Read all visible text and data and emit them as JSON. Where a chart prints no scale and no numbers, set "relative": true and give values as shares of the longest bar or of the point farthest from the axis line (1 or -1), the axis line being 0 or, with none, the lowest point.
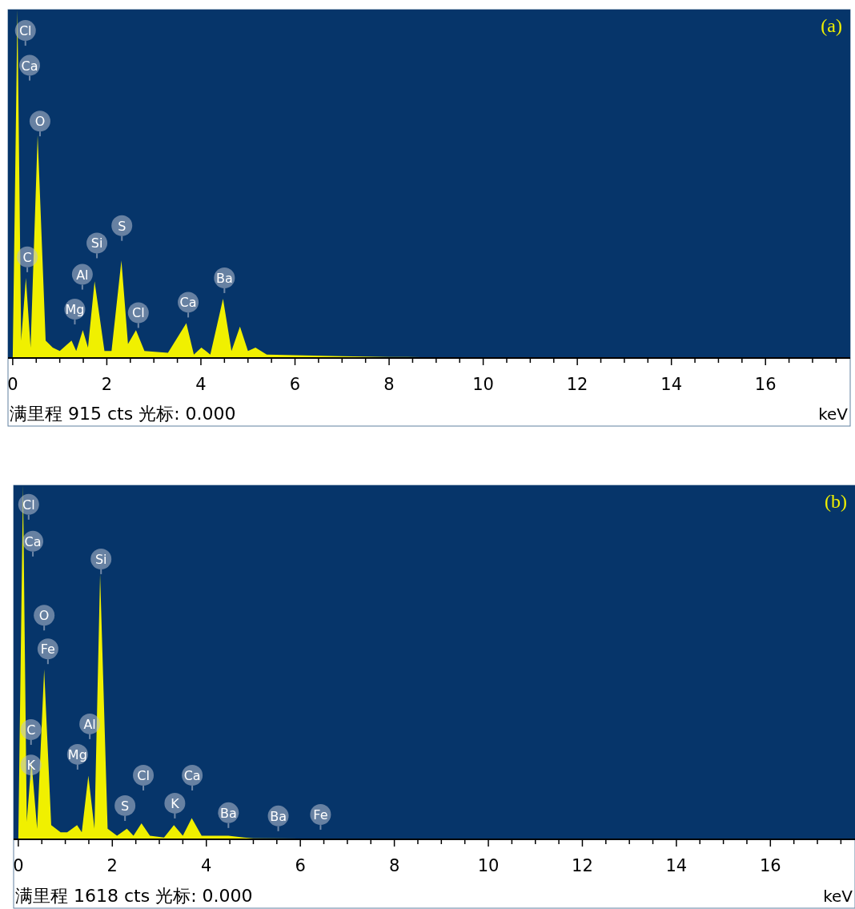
{
  "chart_data": [
    {
      "type": "area",
      "relative": true,
      "title": "(a)",
      "xlabel": "keV",
      "color": "#f0f000",
      "x": [
        0,
        0.1,
        0.18,
        0.28,
        0.38,
        0.53,
        0.7,
        0.85,
        1.0,
        1.25,
        1.35,
        1.49,
        1.6,
        1.74,
        1.95,
        2.1,
        2.31,
        2.45,
        2.62,
        2.8,
        3.3,
        3.69,
        3.85,
        4.01,
        4.2,
        4.47,
        4.65,
        4.83,
        5.0,
        5.16,
        5.4,
        6.0,
        7.0,
        8.0,
        9.0,
        10.0,
        17.7
      ],
      "values": [
        0,
        1,
        0.05,
        0.23,
        0.03,
        0.64,
        0.05,
        0.03,
        0.02,
        0.05,
        0.02,
        0.08,
        0.03,
        0.22,
        0.02,
        0.02,
        0.28,
        0.04,
        0.08,
        0.02,
        0.015,
        0.1,
        0.01,
        0.03,
        0.01,
        0.17,
        0.02,
        0.09,
        0.02,
        0.03,
        0.01,
        0.008,
        0.005,
        0.003,
        0.002,
        0,
        0
      ],
      "xlim": [
        -0.1,
        17.8
      ],
      "xticks": [
        0,
        {
          "value": 0.5,
          "label": null
        },
        {
          "value": 1,
          "label": null
        },
        {
          "value": 1.5,
          "label": null
        },
        2,
        {
          "value": 2.5,
          "label": null
        },
        {
          "value": 3,
          "label": null
        },
        {
          "value": 3.5,
          "label": null
        },
        4,
        {
          "value": 4.5,
          "label": null
        },
        {
          "value": 5,
          "label": null
        },
        {
          "value": 5.5,
          "label": null
        },
        6,
        {
          "value": 6.5,
          "label": null
        },
        {
          "value": 7,
          "label": null
        },
        {
          "value": 7.5,
          "label": null
        },
        8,
        {
          "value": 8.5,
          "label": null
        },
        {
          "value": 9,
          "label": null
        },
        {
          "value": 9.5,
          "label": null
        },
        10,
        {
          "value": 10.5,
          "label": null
        },
        {
          "value": 11,
          "label": null
        },
        {
          "value": 11.5,
          "label": null
        },
        12,
        {
          "value": 12.5,
          "label": null
        },
        {
          "value": 13,
          "label": null
        },
        {
          "value": 13.5,
          "label": null
        },
        14,
        {
          "value": 14.5,
          "label": null
        },
        {
          "value": 15,
          "label": null
        },
        {
          "value": 15.5,
          "label": null
        },
        16,
        {
          "value": 16.5,
          "label": null
        },
        {
          "value": 17,
          "label": null
        },
        {
          "value": 17.5,
          "label": null
        }
      ],
      "annotations": [
        {
          "text": "Cl",
          "x": 0.27,
          "y": 0.94
        },
        {
          "text": "Ca",
          "x": 0.36,
          "y": 0.84
        },
        {
          "text": "O",
          "x": 0.58,
          "y": 0.68
        },
        {
          "text": "C",
          "x": 0.31,
          "y": 0.29
        },
        {
          "text": "Si",
          "x": 1.79,
          "y": 0.33
        },
        {
          "text": "S",
          "x": 2.32,
          "y": 0.38
        },
        {
          "text": "Al",
          "x": 1.48,
          "y": 0.24
        },
        {
          "text": "Mg",
          "x": 1.32,
          "y": 0.14
        },
        {
          "text": "Cl",
          "x": 2.67,
          "y": 0.13
        },
        {
          "text": "Ca",
          "x": 3.73,
          "y": 0.16
        },
        {
          "text": "Ba",
          "x": 4.5,
          "y": 0.23
        },
        "满里程 915 cts 光标: 0.000"
      ]
    },
    {
      "type": "area",
      "relative": true,
      "title": "(b)",
      "xlabel": "keV",
      "color": "#f0f000",
      "x": [
        0,
        0.1,
        0.18,
        0.28,
        0.4,
        0.55,
        0.7,
        0.9,
        1.04,
        1.25,
        1.35,
        1.49,
        1.62,
        1.74,
        1.9,
        2.1,
        2.31,
        2.45,
        2.62,
        2.8,
        3.1,
        3.31,
        3.5,
        3.69,
        3.9,
        4.47,
        4.8,
        5.0,
        6.0,
        8.0,
        17.7
      ],
      "values": [
        0,
        1,
        0.05,
        0.22,
        0.03,
        0.48,
        0.04,
        0.02,
        0.02,
        0.04,
        0.02,
        0.18,
        0.03,
        0.75,
        0.03,
        0.01,
        0.03,
        0.01,
        0.045,
        0.01,
        0.005,
        0.04,
        0.01,
        0.06,
        0.01,
        0.01,
        0.005,
        0.003,
        0.002,
        0,
        0
      ],
      "xlim": [
        -0.1,
        17.8
      ],
      "xticks": [
        0,
        {
          "value": 0.5,
          "label": null
        },
        {
          "value": 1,
          "label": null
        },
        {
          "value": 1.5,
          "label": null
        },
        2,
        {
          "value": 2.5,
          "label": null
        },
        {
          "value": 3,
          "label": null
        },
        {
          "value": 3.5,
          "label": null
        },
        4,
        {
          "value": 4.5,
          "label": null
        },
        {
          "value": 5,
          "label": null
        },
        {
          "value": 5.5,
          "label": null
        },
        6,
        {
          "value": 6.5,
          "label": null
        },
        {
          "value": 7,
          "label": null
        },
        {
          "value": 7.5,
          "label": null
        },
        8,
        {
          "value": 8.5,
          "label": null
        },
        {
          "value": 9,
          "label": null
        },
        {
          "value": 9.5,
          "label": null
        },
        10,
        {
          "value": 10.5,
          "label": null
        },
        {
          "value": 11,
          "label": null
        },
        {
          "value": 11.5,
          "label": null
        },
        12,
        {
          "value": 12.5,
          "label": null
        },
        {
          "value": 13,
          "label": null
        },
        {
          "value": 13.5,
          "label": null
        },
        14,
        {
          "value": 14.5,
          "label": null
        },
        {
          "value": 15,
          "label": null
        },
        {
          "value": 15.5,
          "label": null
        },
        16,
        {
          "value": 16.5,
          "label": null
        },
        {
          "value": 17,
          "label": null
        },
        {
          "value": 17.5,
          "label": null
        }
      ],
      "annotations": [
        {
          "text": "Cl",
          "x": 0.22,
          "y": 0.946
        },
        {
          "text": "Ca",
          "x": 0.31,
          "y": 0.842
        },
        {
          "text": "Si",
          "x": 1.76,
          "y": 0.792
        },
        {
          "text": "O",
          "x": 0.55,
          "y": 0.633
        },
        {
          "text": "Fe",
          "x": 0.63,
          "y": 0.538
        },
        {
          "text": "C",
          "x": 0.27,
          "y": 0.31
        },
        {
          "text": "Al",
          "x": 1.52,
          "y": 0.326
        },
        {
          "text": "Mg",
          "x": 1.26,
          "y": 0.24
        },
        {
          "text": "K",
          "x": 0.27,
          "y": 0.21
        },
        {
          "text": "Cl",
          "x": 2.66,
          "y": 0.181
        },
        {
          "text": "Ca",
          "x": 3.7,
          "y": 0.181
        },
        {
          "text": "S",
          "x": 2.27,
          "y": 0.095
        },
        {
          "text": "K",
          "x": 3.33,
          "y": 0.102
        },
        {
          "text": "Ba",
          "x": 4.47,
          "y": 0.075
        },
        {
          "text": "Ba",
          "x": 5.53,
          "y": 0.066
        },
        {
          "text": "Fe",
          "x": 6.43,
          "y": 0.07
        },
        "满里程 1618 cts 光标: 0.000"
      ]
    }
  ]
}
